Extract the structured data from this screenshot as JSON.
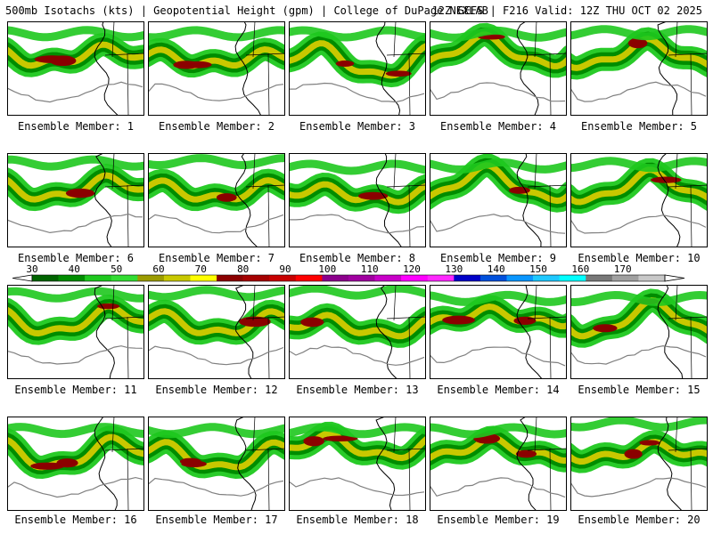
{
  "header": {
    "left": "500mb Isotachs (kts) | Geopotential Height (gpm) | College of DuPage NEXLAB",
    "right": "12Z GEFS | F216 Valid: 12Z THU OCT 02 2025"
  },
  "panels": [
    {
      "label": "Ensemble Member: 1"
    },
    {
      "label": "Ensemble Member: 2"
    },
    {
      "label": "Ensemble Member: 3"
    },
    {
      "label": "Ensemble Member: 4"
    },
    {
      "label": "Ensemble Member: 5"
    },
    {
      "label": "Ensemble Member: 6"
    },
    {
      "label": "Ensemble Member: 7"
    },
    {
      "label": "Ensemble Member: 8"
    },
    {
      "label": "Ensemble Member: 9"
    },
    {
      "label": "Ensemble Member: 10"
    },
    {
      "label": "Ensemble Member: 11"
    },
    {
      "label": "Ensemble Member: 12"
    },
    {
      "label": "Ensemble Member: 13"
    },
    {
      "label": "Ensemble Member: 14"
    },
    {
      "label": "Ensemble Member: 15"
    },
    {
      "label": "Ensemble Member: 16"
    },
    {
      "label": "Ensemble Member: 17"
    },
    {
      "label": "Ensemble Member: 18"
    },
    {
      "label": "Ensemble Member: 19"
    },
    {
      "label": "Ensemble Member: 20"
    }
  ],
  "colorbar": {
    "labels": [
      "30",
      "40",
      "50",
      "60",
      "70",
      "80",
      "90",
      "100",
      "110",
      "120",
      "130",
      "140",
      "150",
      "160",
      "170"
    ],
    "colors": [
      "#006400",
      "#008c00",
      "#1ec81e",
      "#32dc32",
      "#9b9b00",
      "#c8c800",
      "#ffff00",
      "#8b0000",
      "#a50000",
      "#c80000",
      "#ff0000",
      "#8c008c",
      "#a000a0",
      "#c800c8",
      "#ff00ff",
      "#ff28ff",
      "#0000c8",
      "#0050dc",
      "#0a96ff",
      "#1ec8ff",
      "#00ffff",
      "#787878",
      "#a0a0a0",
      "#c8c8c8"
    ]
  }
}
